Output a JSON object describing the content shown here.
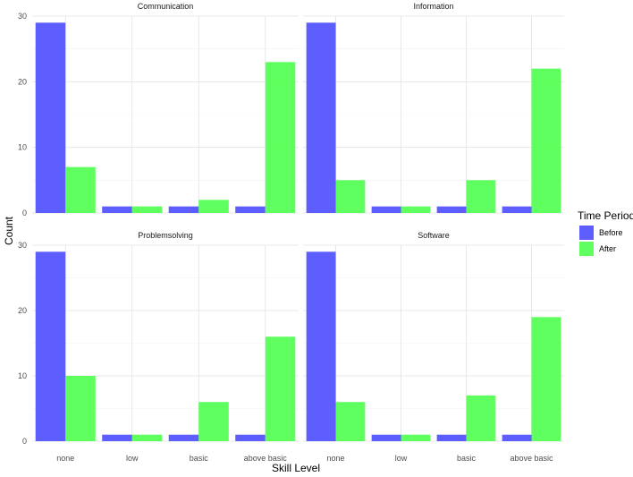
{
  "chart_data": {
    "type": "bar",
    "layout": "facet-2x2",
    "xlabel": "Skill Level",
    "ylabel": "Count",
    "ylim": [
      0,
      30
    ],
    "yticks": [
      0,
      10,
      20,
      30
    ],
    "categories": [
      "none",
      "low",
      "basic",
      "above basic"
    ],
    "legend": {
      "title": "Time Period",
      "position": "right",
      "entries": [
        {
          "name": "Before",
          "color": "#4d4dff"
        },
        {
          "name": "After",
          "color": "#4dff4d"
        }
      ]
    },
    "grid": true,
    "panels": [
      {
        "title": "Communication",
        "series": [
          {
            "name": "Before",
            "values": [
              29,
              1,
              1,
              1
            ]
          },
          {
            "name": "After",
            "values": [
              7,
              1,
              2,
              23
            ]
          }
        ]
      },
      {
        "title": "Information",
        "series": [
          {
            "name": "Before",
            "values": [
              29,
              1,
              1,
              1
            ]
          },
          {
            "name": "After",
            "values": [
              5,
              1,
              5,
              22
            ]
          }
        ]
      },
      {
        "title": "Problemsolving",
        "series": [
          {
            "name": "Before",
            "values": [
              29,
              1,
              1,
              1
            ]
          },
          {
            "name": "After",
            "values": [
              10,
              1,
              6,
              16
            ]
          }
        ]
      },
      {
        "title": "Software",
        "series": [
          {
            "name": "Before",
            "values": [
              29,
              1,
              1,
              1
            ]
          },
          {
            "name": "After",
            "values": [
              6,
              1,
              7,
              19
            ]
          }
        ]
      }
    ]
  }
}
